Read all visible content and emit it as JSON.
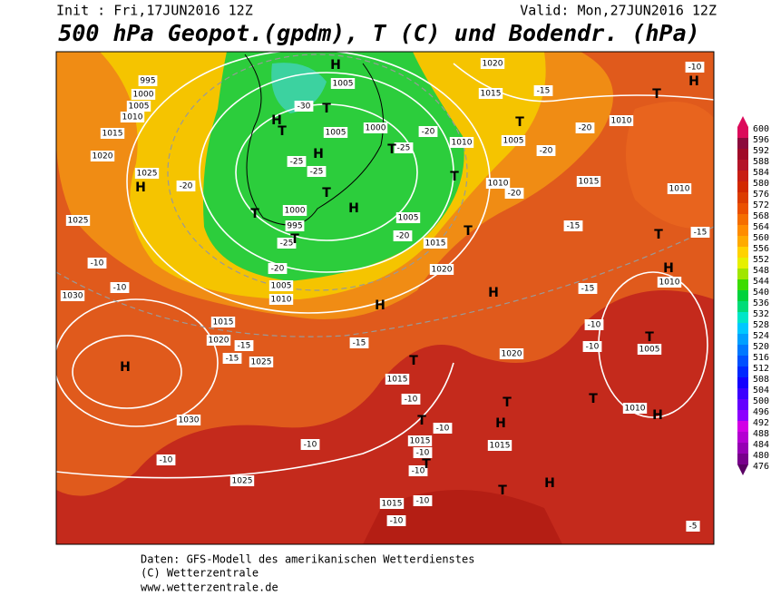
{
  "header": {
    "init": "Init : Fri,17JUN2016 12Z",
    "valid": "Valid: Mon,27JUN2016 12Z",
    "title": "500 hPa Geopot.(gpdm), T (C) und Bodendr. (hPa)"
  },
  "colorbar": {
    "levels": [
      476,
      480,
      484,
      488,
      492,
      496,
      500,
      504,
      508,
      512,
      516,
      520,
      524,
      528,
      532,
      536,
      540,
      544,
      548,
      552,
      556,
      560,
      564,
      568,
      572,
      576,
      580,
      584,
      588,
      592,
      596,
      600
    ],
    "colors": [
      "#5a0064",
      "#78008c",
      "#9600b4",
      "#b400d2",
      "#d200e6",
      "#8c00ff",
      "#6400ff",
      "#3c00ff",
      "#1400ff",
      "#0028ff",
      "#0050ff",
      "#0078ff",
      "#00a0ff",
      "#00c8ff",
      "#00e6c8",
      "#00dc78",
      "#00d23c",
      "#3cdc00",
      "#a0e600",
      "#e6f000",
      "#ffd200",
      "#ffaa00",
      "#ff8c00",
      "#f56e00",
      "#eb5000",
      "#dc3c00",
      "#d22800",
      "#c81e14",
      "#b41428",
      "#a00a28",
      "#8c0a3c",
      "#dc0a5a"
    ]
  },
  "map_labels": {
    "isobars": [
      "995",
      "1000",
      "1005",
      "1010",
      "1015",
      "1020",
      "1025",
      "1025",
      "1030",
      "1005",
      "1000",
      "1005",
      "1000",
      "995",
      "1005",
      "1010",
      "1015",
      "1020",
      "1025",
      "1030",
      "1025",
      "1015",
      "1015",
      "1015",
      "1015",
      "1020",
      "1020",
      "1015",
      "1010",
      "1010",
      "1010",
      "1005",
      "1010",
      "1010",
      "1015",
      "1020",
      "1005",
      "1010",
      "1015",
      "1005"
    ],
    "centers": [
      "H",
      "H",
      "H",
      "H",
      "H",
      "H",
      "H",
      "H",
      "H",
      "H",
      "H",
      "H",
      "H",
      "T",
      "T",
      "T",
      "T",
      "T",
      "T",
      "T",
      "T",
      "T",
      "T",
      "T",
      "T",
      "T",
      "T",
      "T",
      "T",
      "T",
      "T"
    ],
    "temperatures": [
      "-20",
      "-25",
      "-30",
      "-25",
      "-25",
      "-20",
      "-20",
      "-20",
      "-25",
      "-20",
      "-20",
      "-20",
      "-15",
      "-15",
      "-15",
      "-15",
      "-15",
      "-10",
      "-10",
      "-10",
      "-10",
      "-10",
      "-10",
      "-10",
      "-10",
      "-10",
      "-10",
      "-15",
      "-10",
      "-10",
      "-15",
      "-10",
      "-5"
    ]
  },
  "footer": {
    "line1": "Daten: GFS-Modell des amerikanischen Wetterdienstes",
    "line2": "(C) Wetterzentrale",
    "line3": "www.wetterzentrale.de"
  }
}
